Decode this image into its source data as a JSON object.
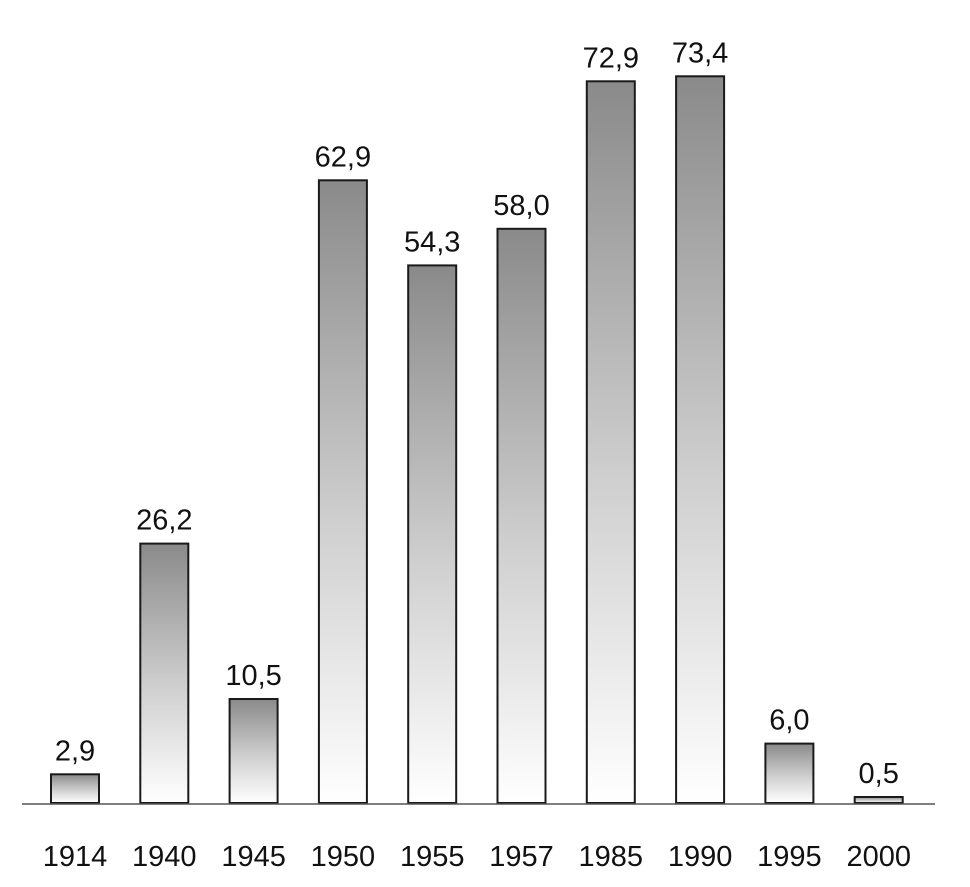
{
  "chart_data": {
    "type": "bar",
    "categories": [
      "1914",
      "1940",
      "1945",
      "1950",
      "1955",
      "1957",
      "1985",
      "1990",
      "1995",
      "2000"
    ],
    "values": [
      2.9,
      26.2,
      10.5,
      62.9,
      54.3,
      58.0,
      72.9,
      73.4,
      6.0,
      0.5
    ],
    "value_labels": [
      "2,9",
      "26,2",
      "10,5",
      "62,9",
      "54,3",
      "58,0",
      "72,9",
      "73,4",
      "6,0",
      "0,5"
    ],
    "title": "",
    "xlabel": "",
    "ylabel": "",
    "ylim": [
      0,
      80
    ],
    "grid": false,
    "legend": "none",
    "colors": {
      "bar_top": "#8a8a8a",
      "bar_bottom": "#ffffff",
      "bar_stroke": "#1a1a1a",
      "baseline": "#555555"
    }
  }
}
